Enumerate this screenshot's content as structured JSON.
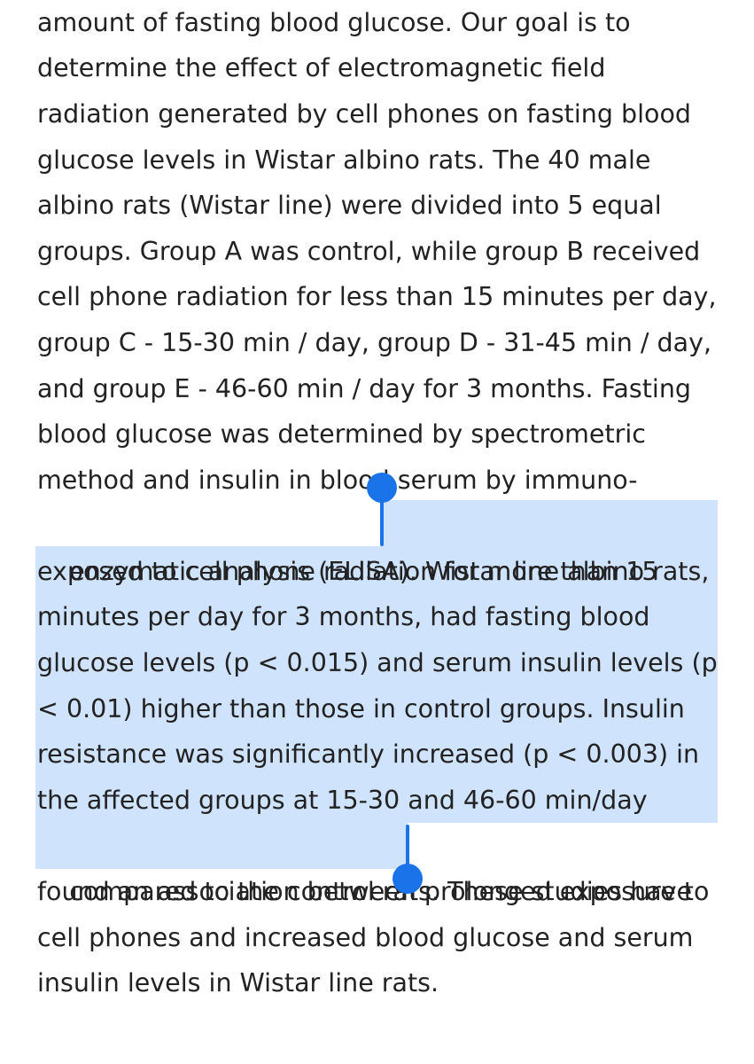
{
  "document": {
    "lines": [
      "amount of fasting blood glucose. Our goal is to",
      "determine the effect of electromagnetic field",
      "radiation generated by cell phones on fasting blood",
      "glucose levels in Wistar albino rats. The 40 male",
      "albino rats (Wistar line) were divided into 5 equal",
      "groups. Group A was control, while group B received",
      "cell phone radiation for less than 15 minutes per day,",
      "group C - 15-30 min / day, group D - 31-45 min / day,",
      "and group E - 46-60 min / day for 3 months. Fasting",
      "blood glucose was determined by spectrometric",
      "method and insulin in blood serum by immuno-"
    ],
    "line12_before": "enzymatic analysis (ELISA). ",
    "line12_selected": "Wistar line albino rats,",
    "selected_lines": [
      "exposed to cell phone radiation for more than 15",
      "minutes per day for 3 months, had fasting blood",
      "glucose levels (p < 0.015) and serum insulin levels (p",
      "< 0.01) higher than those in control groups. Insulin",
      "resistance was significantly increased (p < 0.003) in",
      "the affected groups at 15-30 and 46-60 min/day"
    ],
    "line19_selected": "compared to the control rats.",
    "line19_after": " These studies have",
    "tail_lines": [
      "found an association between prolonged exposure to",
      "cell phones and increased blood glucose and serum",
      "insulin levels in Wistar line rats."
    ]
  },
  "colors": {
    "text": "#222222",
    "selection": "#cfe3fd",
    "handle": "#1a73e8"
  }
}
